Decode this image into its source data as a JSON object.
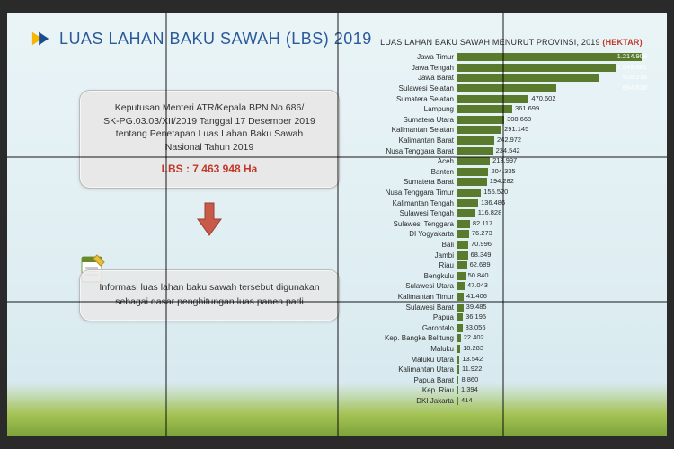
{
  "header": {
    "title": "LUAS LAHAN BAKU SAWAH (LBS) 2019",
    "title_color": "#2a5a9a",
    "logo_colors": {
      "tri": "#f7b500",
      "arrow": "#1a4b8c"
    }
  },
  "decree": {
    "lines": [
      "Keputusan Menteri ATR/Kepala BPN No.686/",
      "SK-PG.03.03/XII/2019 Tanggal 17 Desember 2019",
      "tentang Penetapan Luas Lahan Baku Sawah",
      "Nasional Tahun 2019"
    ],
    "lbs_label": "LBS : 7 463 948 Ha",
    "lbs_color": "#c0392b"
  },
  "info": {
    "lines": [
      "Informasi luas lahan baku sawah tersebut digunakan",
      "sebagai dasar penghitungan luas panen padi"
    ]
  },
  "chart": {
    "type": "bar-horizontal",
    "title_prefix": "LUAS LAHAN BAKU SAWAH MENURUT PROVINSI, 2019",
    "title_unit": "(HEKTAR)",
    "unit_color": "#c0392b",
    "bar_color": "#5a7a2e",
    "background_color": "#e6f1f4",
    "max_value": 1214909,
    "label_fontsize": 8,
    "value_fontsize": 7.5,
    "data": [
      {
        "prov": "Jawa Timur",
        "val": 1214909,
        "disp": "1.214.909"
      },
      {
        "prov": "Jawa Tengah",
        "val": 1049661,
        "disp": "1.049.661"
      },
      {
        "prov": "Jawa Barat",
        "val": 928218,
        "disp": "928.218"
      },
      {
        "prov": "Sulawesi Selatan",
        "val": 654818,
        "disp": "654.818"
      },
      {
        "prov": "Sumatera Selatan",
        "val": 470602,
        "disp": "470.602"
      },
      {
        "prov": "Lampung",
        "val": 361699,
        "disp": "361.699"
      },
      {
        "prov": "Sumatera Utara",
        "val": 308668,
        "disp": "308.668"
      },
      {
        "prov": "Kalimantan Selatan",
        "val": 291145,
        "disp": "291.145"
      },
      {
        "prov": "Kalimantan Barat",
        "val": 242972,
        "disp": "242.972"
      },
      {
        "prov": "Nusa Tenggara Barat",
        "val": 234542,
        "disp": "234.542"
      },
      {
        "prov": "Aceh",
        "val": 213997,
        "disp": "213.997"
      },
      {
        "prov": "Banten",
        "val": 204335,
        "disp": "204.335"
      },
      {
        "prov": "Sumatera Barat",
        "val": 194282,
        "disp": "194.282"
      },
      {
        "prov": "Nusa Tenggara Timur",
        "val": 155520,
        "disp": "155.520"
      },
      {
        "prov": "Kalimantan Tengah",
        "val": 136486,
        "disp": "136.486"
      },
      {
        "prov": "Sulawesi Tengah",
        "val": 116828,
        "disp": "116.828"
      },
      {
        "prov": "Sulawesi Tenggara",
        "val": 82117,
        "disp": "82.117"
      },
      {
        "prov": "DI Yogyakarta",
        "val": 76273,
        "disp": "76.273"
      },
      {
        "prov": "Bali",
        "val": 70996,
        "disp": "70.996"
      },
      {
        "prov": "Jambi",
        "val": 68349,
        "disp": "68.349"
      },
      {
        "prov": "Riau",
        "val": 62689,
        "disp": "62.689"
      },
      {
        "prov": "Bengkulu",
        "val": 50840,
        "disp": "50.840"
      },
      {
        "prov": "Sulawesi Utara",
        "val": 47043,
        "disp": "47.043"
      },
      {
        "prov": "Kalimantan Timur",
        "val": 41406,
        "disp": "41.406"
      },
      {
        "prov": "Sulawesi Barat",
        "val": 39485,
        "disp": "39.485"
      },
      {
        "prov": "Papua",
        "val": 36195,
        "disp": "36.195"
      },
      {
        "prov": "Gorontalo",
        "val": 33056,
        "disp": "33.056"
      },
      {
        "prov": "Kep. Bangka Belitung",
        "val": 22402,
        "disp": "22.402"
      },
      {
        "prov": "Maluku",
        "val": 18283,
        "disp": "18.283"
      },
      {
        "prov": "Maluku Utara",
        "val": 13542,
        "disp": "13.542"
      },
      {
        "prov": "Kalimantan Utara",
        "val": 11922,
        "disp": "11.922"
      },
      {
        "prov": "Papua Barat",
        "val": 8860,
        "disp": "8.860"
      },
      {
        "prov": "Kep. Riau",
        "val": 1394,
        "disp": "1.394"
      },
      {
        "prov": "DKI Jakarta",
        "val": 414,
        "disp": "414"
      }
    ]
  }
}
